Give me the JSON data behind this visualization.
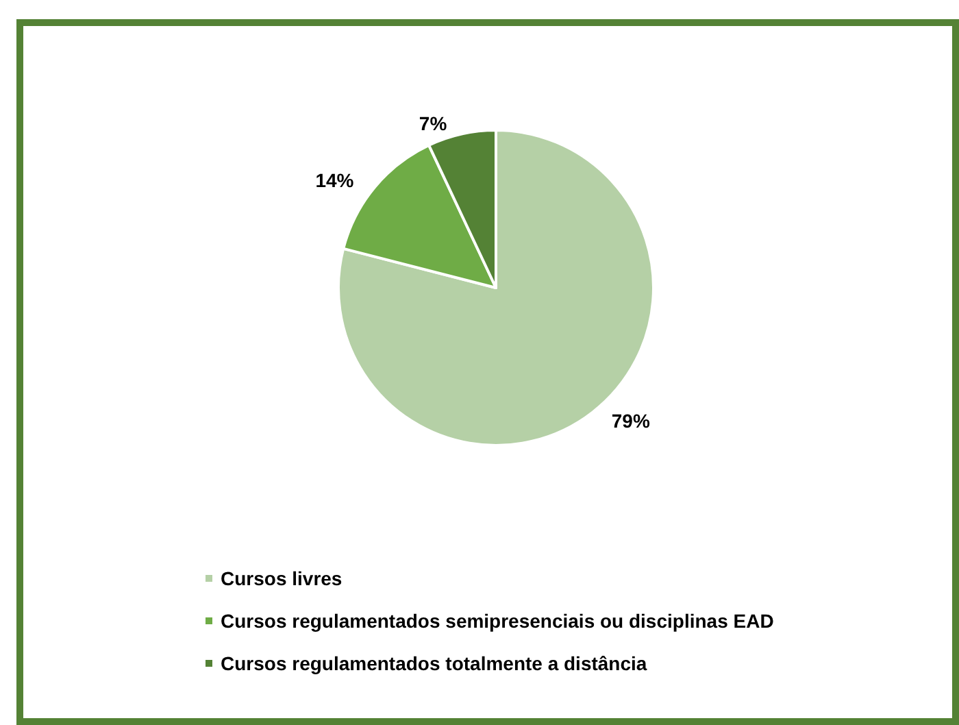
{
  "chart_data": {
    "type": "pie",
    "categories": [
      "Cursos livres",
      "Cursos regulamentados semipresenciais ou disciplinas EAD",
      "Cursos regulamentados totalmente a distância"
    ],
    "values": [
      79,
      14,
      7
    ],
    "colors": [
      "#b5d0a6",
      "#6fac46",
      "#548235"
    ],
    "value_labels": [
      "79%",
      "14%",
      "7%"
    ],
    "legend": "bottom left"
  }
}
